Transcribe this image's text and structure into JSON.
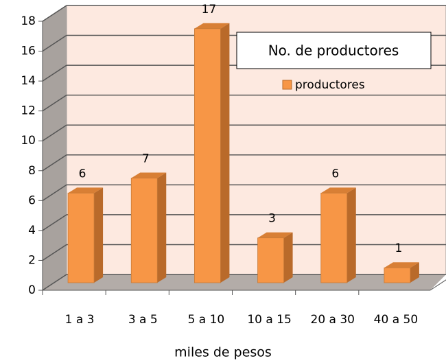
{
  "chart_data": {
    "type": "bar3d",
    "legend_title": "No. de productores",
    "x_label": "miles de pesos",
    "categories": [
      "1 a 3",
      "3 a 5",
      "5 a 10",
      "10 a 15",
      "20 a 30",
      "40 a 50"
    ],
    "series": [
      {
        "name": "productores",
        "color": "#f79646",
        "values": [
          6,
          7,
          17,
          3,
          6,
          1
        ]
      }
    ],
    "ylim": [
      0,
      18
    ],
    "yticks": [
      0,
      2,
      4,
      6,
      8,
      10,
      12,
      14,
      16,
      18
    ],
    "grid": true,
    "legend": "upper right"
  }
}
